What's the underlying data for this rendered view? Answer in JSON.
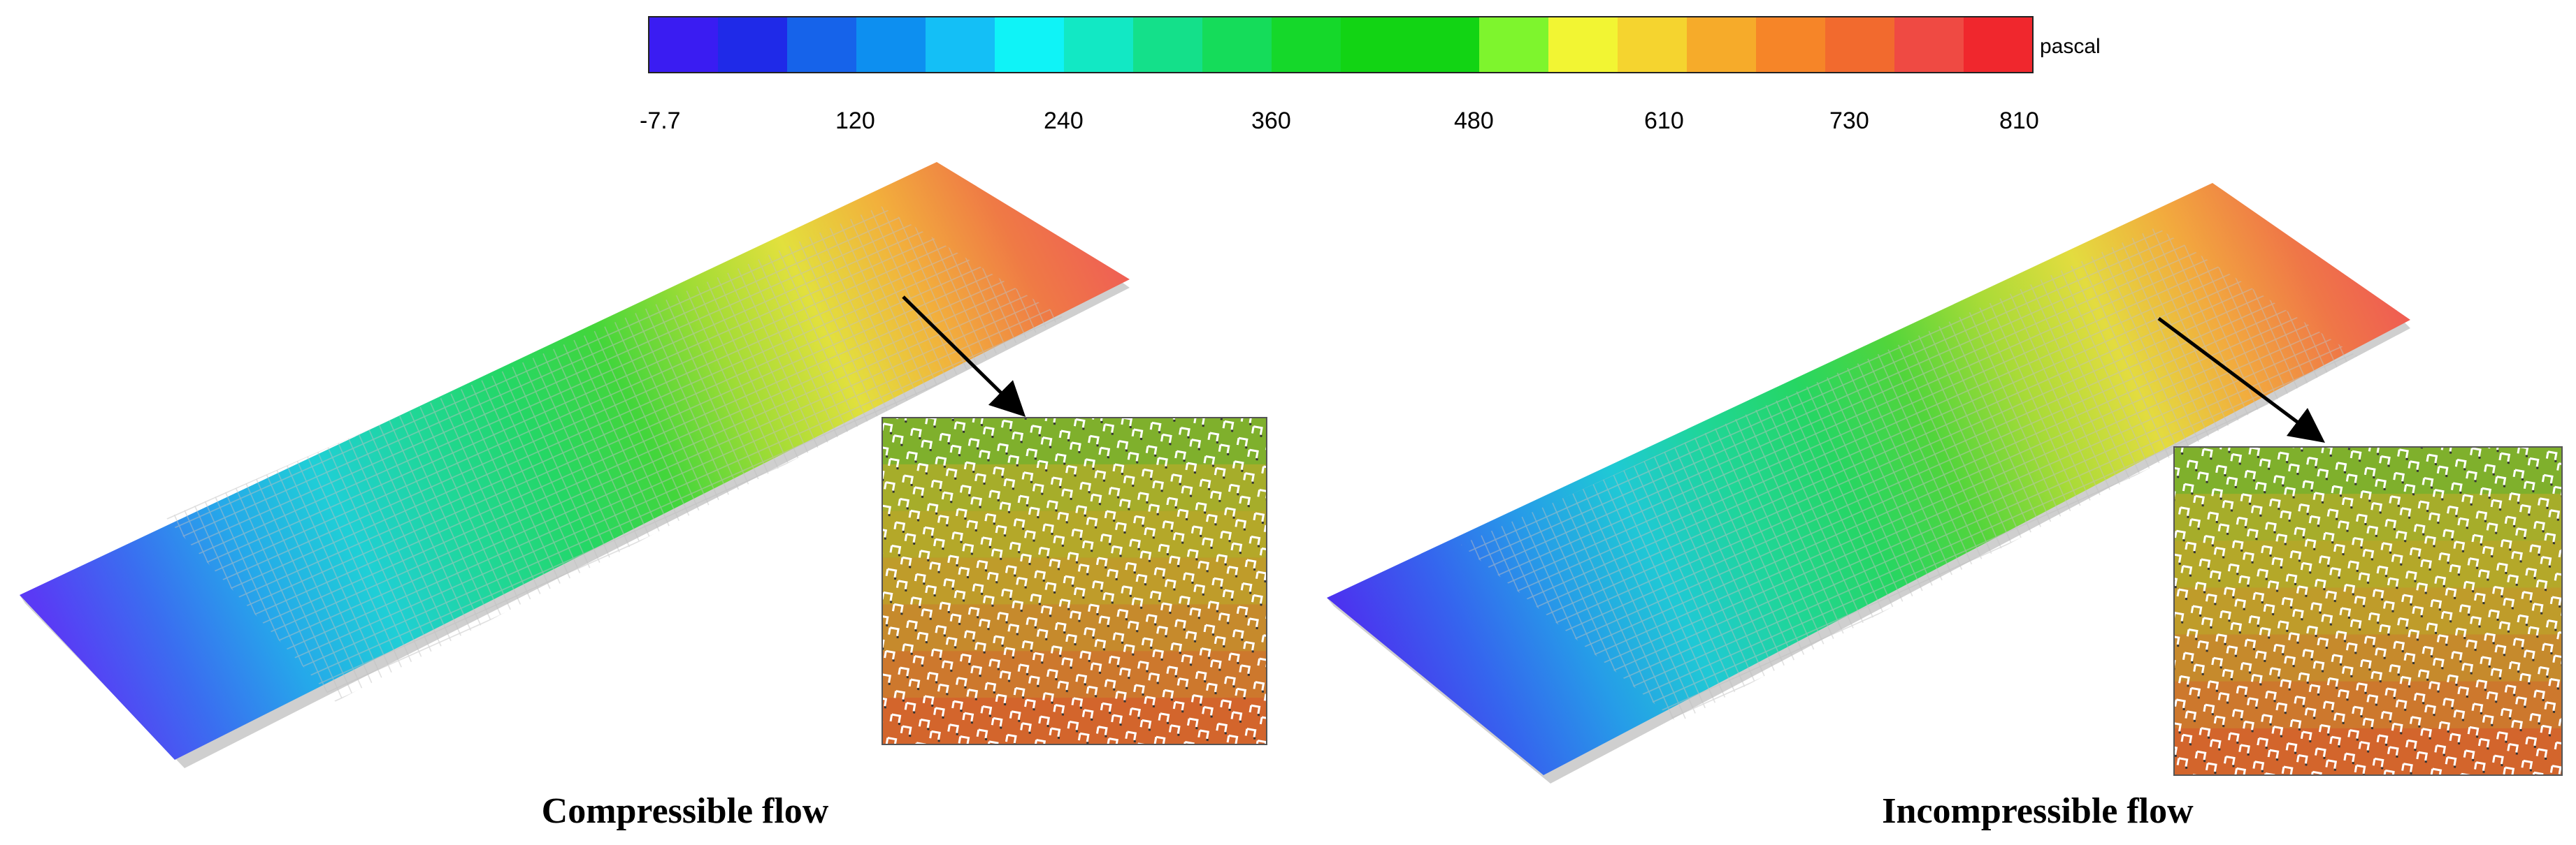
{
  "colorbar": {
    "unit": "pascal",
    "ticks": [
      "-7.7",
      "120",
      "240",
      "360",
      "480",
      "610",
      "730",
      "810"
    ],
    "colors": [
      "#3a1cf2",
      "#1f2ae8",
      "#1663ea",
      "#0d8ff0",
      "#14bff6",
      "#0ff3f7",
      "#12e8c4",
      "#14e08a",
      "#15dc5a",
      "#15d82a",
      "#12d414",
      "#12d414",
      "#7ef52d",
      "#f2f533",
      "#f5d42f",
      "#f6ab2a",
      "#f68528",
      "#f26a2e",
      "#ef4a43",
      "#f0272d"
    ]
  },
  "panels": [
    {
      "label": "Compressible flow",
      "gradient": [
        "#5a3af5",
        "#3a6ef0",
        "#25a8ea",
        "#1fcfd6",
        "#1fd79a",
        "#24d766",
        "#43d63b",
        "#9fdc35",
        "#e2e03d",
        "#f2b03c",
        "#ef7a45",
        "#ef5b57"
      ]
    },
    {
      "label": "Incompressible flow",
      "gradient": [
        "#4c33ef",
        "#3565ee",
        "#269ce8",
        "#1fc9d5",
        "#1fd697",
        "#26d663",
        "#52d53b",
        "#a9db37",
        "#e3dc3f",
        "#f2aa3e",
        "#ef7747",
        "#ef5357"
      ]
    }
  ],
  "inset": {
    "bands": [
      "#7fb02c",
      "#a6ad2a",
      "#b4a829",
      "#bf9c2a",
      "#c68a2c",
      "#cd782d",
      "#d3652c"
    ]
  }
}
